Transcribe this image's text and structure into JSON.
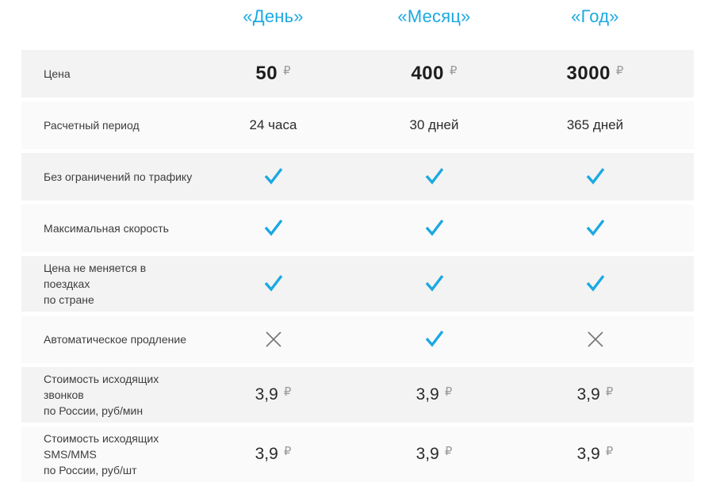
{
  "accent_color": "#1ba9e2",
  "cross_color": "#757575",
  "currency_symbol": "₽",
  "columns": [
    {
      "label": "«День»"
    },
    {
      "label": "«Месяц»"
    },
    {
      "label": "«Год»"
    }
  ],
  "rows": [
    {
      "label": "Цена",
      "type": "price",
      "values": [
        {
          "num": "50",
          "cur": "₽"
        },
        {
          "num": "400",
          "cur": "₽"
        },
        {
          "num": "3000",
          "cur": "₽"
        }
      ]
    },
    {
      "label": "Расчетный период",
      "type": "text",
      "values": [
        "24 часа",
        "30 дней",
        "365 дней"
      ]
    },
    {
      "label": "Без ограничений по трафику",
      "type": "icons",
      "values": [
        "check",
        "check",
        "check"
      ]
    },
    {
      "label": "Максимальная скорость",
      "type": "icons",
      "values": [
        "check",
        "check",
        "check"
      ]
    },
    {
      "label": "Цена не меняется в поездках\nпо стране",
      "type": "icons",
      "values": [
        "check",
        "check",
        "check"
      ]
    },
    {
      "label": "Автоматическое продление",
      "type": "icons",
      "values": [
        "cross",
        "check",
        "cross"
      ]
    },
    {
      "label": "Стоимость исходящих звонков\nпо России, руб/мин",
      "type": "small_price",
      "values": [
        {
          "num": "3,9",
          "cur": "₽"
        },
        {
          "num": "3,9",
          "cur": "₽"
        },
        {
          "num": "3,9",
          "cur": "₽"
        }
      ]
    },
    {
      "label": "Стоимость исходящих SMS/MMS\nпо России, руб/шт",
      "type": "small_price",
      "values": [
        {
          "num": "3,9",
          "cur": "₽"
        },
        {
          "num": "3,9",
          "cur": "₽"
        },
        {
          "num": "3,9",
          "cur": "₽"
        }
      ]
    }
  ]
}
